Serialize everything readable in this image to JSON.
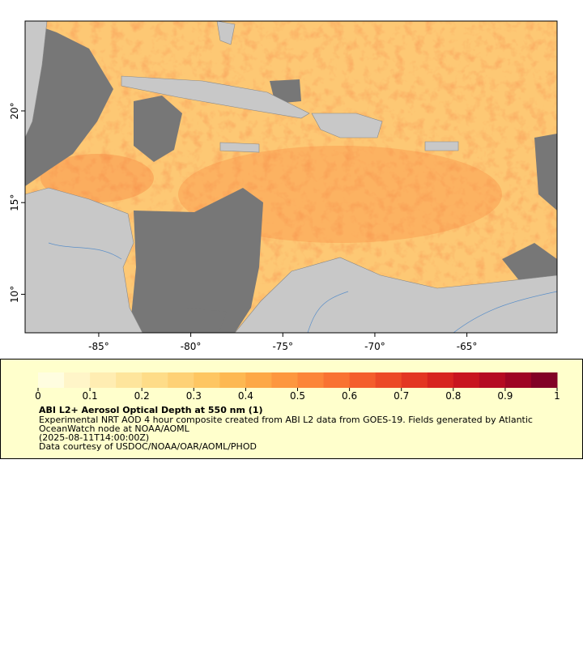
{
  "chart_data": {
    "type": "map",
    "xlim": [
      -89,
      -60.1
    ],
    "ylim": [
      7.9,
      24.9
    ],
    "xticks": [
      {
        "value": -85,
        "label": "-85°"
      },
      {
        "value": -80,
        "label": "-80°"
      },
      {
        "value": -75,
        "label": "-75°"
      },
      {
        "value": -70,
        "label": "-70°"
      },
      {
        "value": -65,
        "label": "-65°"
      }
    ],
    "yticks": [
      {
        "value": 10,
        "label": "10°"
      },
      {
        "value": 15,
        "label": "15°"
      },
      {
        "value": 20,
        "label": "20°"
      }
    ],
    "colorbar": {
      "lim": [
        0,
        1
      ],
      "ticks": [
        0,
        0.1,
        0.2,
        0.3,
        0.4,
        0.5,
        0.6,
        0.7,
        0.8,
        0.9,
        1
      ],
      "colors": [
        "#fffde0",
        "#fff5c8",
        "#ffedb2",
        "#fee59c",
        "#fedc88",
        "#fed176",
        "#fec662",
        "#fdb852",
        "#fda847",
        "#fd973f",
        "#fc8539",
        "#f97232",
        "#f45e2c",
        "#ec4a26",
        "#e33622",
        "#d7241f",
        "#c8151f",
        "#b50b22",
        "#9e0524",
        "#820225"
      ]
    },
    "legend": {
      "title": "ABI L2+ Aerosol Optical Depth at 550 nm (1)",
      "lines": [
        "Experimental NRT AOD 4 hour composite created from ABI L2 data from GOES-19. Fields generated by Atlantic",
        "OceanWatch node at NOAA/AOML",
        "(2025-08-11T14:00:00Z)",
        "Data courtesy of USDOC/NOAA/OAR/AOML/PHOD"
      ]
    }
  }
}
